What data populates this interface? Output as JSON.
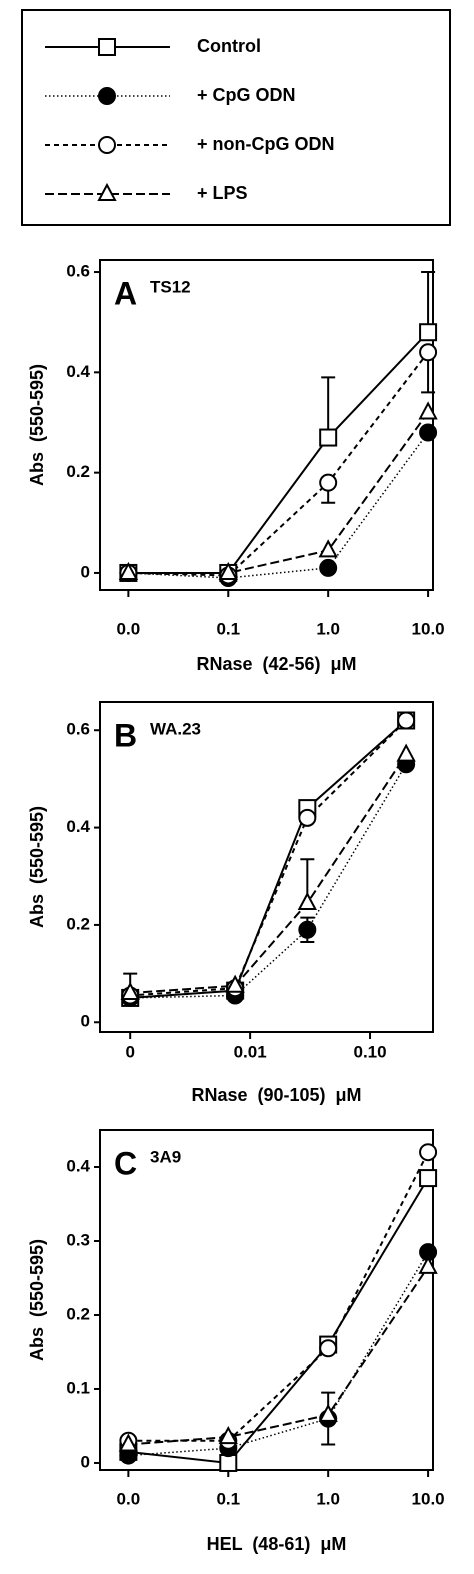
{
  "chart_data": [
    {
      "type": "line",
      "title": "A",
      "subtitle": "TS12",
      "x_label": "RNase  (42-56)  μM",
      "y_label": "Abs  (550-595)",
      "x": [
        0,
        0.1,
        1,
        10
      ],
      "x_scale": "log",
      "xlim": [
        0.0052,
        11.2
      ],
      "xticks": [
        {
          "value": 0,
          "label": "0.0"
        },
        0.1,
        {
          "value": 1,
          "label": "1.0"
        },
        {
          "value": 10,
          "label": "10.0"
        }
      ],
      "ylim": [
        -0.034,
        0.624
      ],
      "yticks": [
        0,
        0.2,
        0.4,
        0.6
      ],
      "series": [
        {
          "name": "Control",
          "color": "#000000",
          "marker": "square-open",
          "dash": "solid",
          "values": [
            0,
            0,
            0.27,
            0.48
          ],
          "errors": [
            null,
            null,
            0.12,
            0.12
          ],
          "error_side": "up"
        },
        {
          "name": "+ CpG ODN",
          "color": "#000000",
          "marker": "circle-filled",
          "dash": "dotted",
          "values": [
            0,
            -0.01,
            0.01,
            0.28
          ]
        },
        {
          "name": "+ non-CpG ODN",
          "color": "#000000",
          "marker": "circle-open",
          "dash": "dashed",
          "values": [
            0,
            -0.005,
            0.18,
            0.44
          ],
          "errors": [
            null,
            null,
            0.04,
            0.08
          ],
          "error_side": "down"
        },
        {
          "name": "+ LPS",
          "color": "#000000",
          "marker": "triangle-open",
          "dash": "longdash",
          "values": [
            0,
            0,
            0.045,
            0.32
          ]
        }
      ]
    },
    {
      "type": "line",
      "title": "B",
      "subtitle": "WA.23",
      "x_label": "RNase  (90-105)  μM",
      "y_label": "Abs  (550-595)",
      "x": [
        0,
        0.0075,
        0.03,
        0.2
      ],
      "x_scale": "log",
      "xlim": [
        0.00056,
        0.335
      ],
      "xticks": [
        0,
        0.01,
        {
          "value": 0.1,
          "label": "0.10"
        }
      ],
      "ylim": [
        -0.02,
        0.658
      ],
      "yticks": [
        0,
        0.2,
        0.4,
        0.6
      ],
      "series": [
        {
          "color": "#000000",
          "marker": "square-open",
          "dash": "solid",
          "values": [
            0.05,
            0.065,
            0.44,
            0.62
          ]
        },
        {
          "color": "#000000",
          "marker": "circle-filled",
          "dash": "dotted",
          "values": [
            0.05,
            0.055,
            0.19,
            0.53
          ],
          "errors": [
            null,
            null,
            0.025,
            null
          ],
          "error_side": "both"
        },
        {
          "color": "#000000",
          "marker": "circle-open",
          "dash": "dashed",
          "values": [
            0.055,
            0.07,
            0.42,
            0.62
          ]
        },
        {
          "color": "#000000",
          "marker": "triangle-open",
          "dash": "longdash",
          "values": [
            0.06,
            0.075,
            0.245,
            0.55
          ],
          "errors": [
            0.04,
            null,
            0.09,
            null
          ],
          "error_side": "up"
        }
      ]
    },
    {
      "type": "line",
      "title": "C",
      "subtitle": "3A9",
      "x_label": "HEL  (48-61)  μM",
      "y_label": "Abs  (550-595)",
      "x": [
        0,
        0.1,
        1,
        10
      ],
      "x_scale": "log",
      "xlim": [
        0.0052,
        11.2
      ],
      "xticks": [
        {
          "value": 0,
          "label": "0.0"
        },
        0.1,
        {
          "value": 1,
          "label": "1.0"
        },
        {
          "value": 10,
          "label": "10.0"
        }
      ],
      "ylim": [
        -0.0095,
        0.45
      ],
      "yticks": [
        0,
        0.1,
        0.2,
        0.3,
        0.4
      ],
      "series": [
        {
          "color": "#000000",
          "marker": "square-open",
          "dash": "solid",
          "values": [
            0.015,
            0,
            0.16,
            0.385
          ]
        },
        {
          "color": "#000000",
          "marker": "circle-filled",
          "dash": "dotted",
          "values": [
            0.01,
            0.02,
            0.06,
            0.285
          ],
          "errors": [
            null,
            null,
            0.035,
            null
          ],
          "error_side": "both"
        },
        {
          "color": "#000000",
          "marker": "circle-open",
          "dash": "dashed",
          "values": [
            0.03,
            0.03,
            0.155,
            0.42
          ]
        },
        {
          "color": "#000000",
          "marker": "triangle-open",
          "dash": "longdash",
          "values": [
            0.025,
            0.035,
            0.065,
            0.265
          ]
        }
      ]
    }
  ]
}
